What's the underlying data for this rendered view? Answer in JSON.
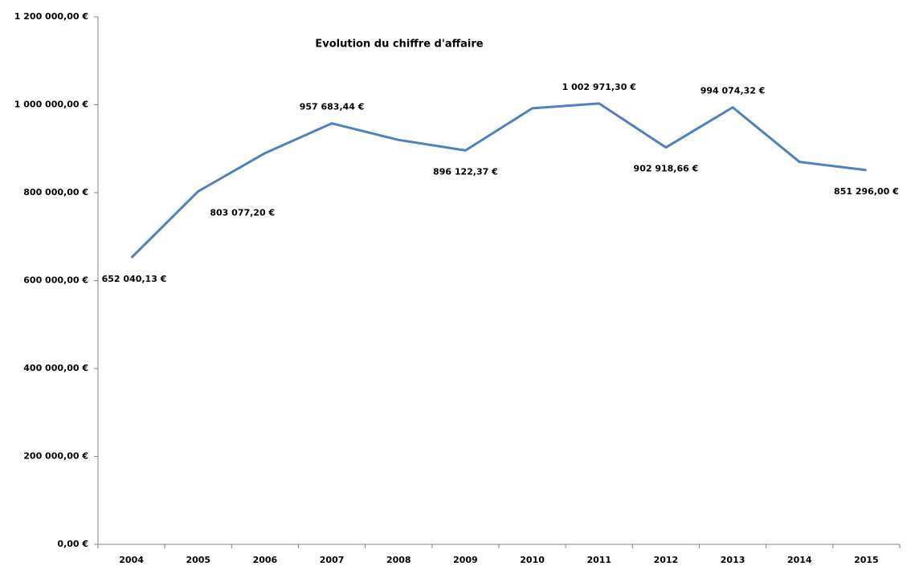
{
  "chart_data": {
    "type": "line",
    "title": "Evolution du chiffre d'affaire",
    "categories": [
      "2004",
      "2005",
      "2006",
      "2007",
      "2008",
      "2009",
      "2010",
      "2011",
      "2012",
      "2013",
      "2014",
      "2015"
    ],
    "series": [
      {
        "name": "Chiffre d'affaire",
        "color": "#4f81bd",
        "values": [
          652040.13,
          803077.2,
          890000,
          957683.44,
          920000,
          896122.37,
          992000,
          1002971.3,
          902918.66,
          994074.32,
          870000,
          851296.0
        ],
        "value_labels": [
          "652 040,13 €",
          "803 077,20 €",
          null,
          "957 683,44 €",
          null,
          "896 122,37 €",
          null,
          "1 002 971,30 €",
          "902 918,66 €",
          "994 074,32 €",
          null,
          "851 296,00 €"
        ]
      }
    ],
    "ylim": [
      0,
      1200000
    ],
    "yticks": [
      {
        "value": 0,
        "label": "0,00 €"
      },
      {
        "value": 200000,
        "label": "200 000,00 €"
      },
      {
        "value": 400000,
        "label": "400 000,00 €"
      },
      {
        "value": 600000,
        "label": "600 000,00 €"
      },
      {
        "value": 800000,
        "label": "800 000,00 €"
      },
      {
        "value": 1000000,
        "label": "1 000 000,00 €"
      },
      {
        "value": 1200000,
        "label": "1 200 000,00 €"
      }
    ],
    "grid": false
  }
}
